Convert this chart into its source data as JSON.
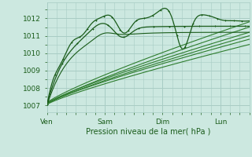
{
  "title": "Pression niveau de la mer( hPa )",
  "xlim": [
    0,
    3.5
  ],
  "ylim": [
    1006.6,
    1012.9
  ],
  "yticks": [
    1007,
    1008,
    1009,
    1010,
    1011,
    1012
  ],
  "xtick_positions": [
    0,
    1,
    2,
    3
  ],
  "xtick_labels": [
    "Ven",
    "Sam",
    "Dim",
    "Lun"
  ],
  "bg_color": "#cce8e0",
  "grid_color": "#a8ccc4",
  "line_dark": "#1a5c1a",
  "line_mid": "#2e7d2e",
  "line_light": "#4a9a4a",
  "ensemble_ends": [
    1010.5,
    1010.8,
    1011.0,
    1011.2,
    1011.5,
    1011.8
  ],
  "ensemble_starts": [
    1007.05,
    1007.1,
    1007.08,
    1007.12,
    1007.06,
    1007.15
  ]
}
